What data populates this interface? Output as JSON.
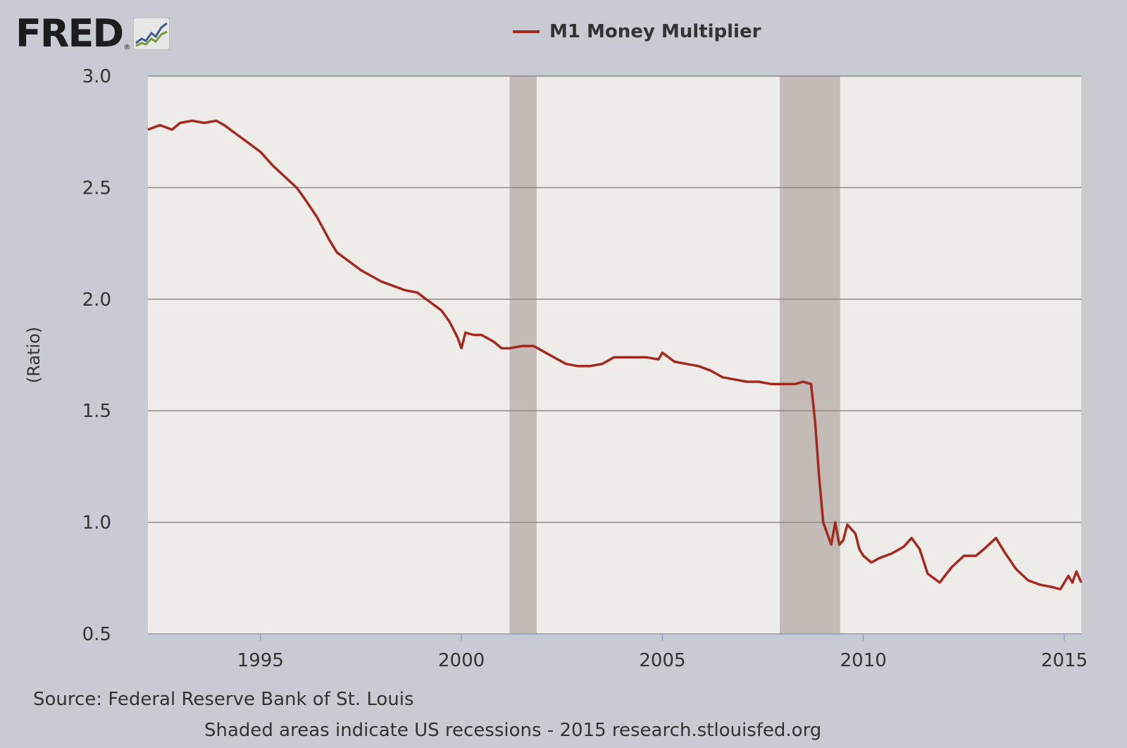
{
  "logo": {
    "text": "FRED",
    "reg": "®",
    "icon": "mini-line-chart-icon"
  },
  "colors": {
    "page_bg": "#c9cbd3",
    "plot_bg": "#eeece9",
    "recession": "#c2bbb6",
    "gridline": "#8e8a88",
    "series": "#a42a20",
    "text": "#333333"
  },
  "chart_data": {
    "type": "line",
    "title": "",
    "xlabel": "",
    "ylabel": "(Ratio)",
    "xlim": [
      1992.2,
      2015.42
    ],
    "ylim": [
      0.5,
      3.0
    ],
    "x_ticks": [
      1995,
      2000,
      2005,
      2010,
      2015
    ],
    "x_tick_labels": [
      "1995",
      "2000",
      "2005",
      "2010",
      "2015"
    ],
    "y_ticks": [
      0.5,
      1.0,
      1.5,
      2.0,
      2.5,
      3.0
    ],
    "y_tick_labels": [
      "0.5",
      "1.0",
      "1.5",
      "2.0",
      "2.5",
      "3.0"
    ],
    "grid": true,
    "legend_position": "top-center",
    "recessions": [
      {
        "start": 2001.2,
        "end": 2001.87
      },
      {
        "start": 2007.92,
        "end": 2009.42
      }
    ],
    "series": [
      {
        "name": "M1 Money Multiplier",
        "color": "#a42a20",
        "x": [
          1992.2,
          1992.5,
          1992.8,
          1993.0,
          1993.3,
          1993.6,
          1993.9,
          1994.1,
          1994.4,
          1994.7,
          1995.0,
          1995.3,
          1995.6,
          1995.9,
          1996.1,
          1996.4,
          1996.7,
          1996.9,
          1997.2,
          1997.5,
          1997.8,
          1998.0,
          1998.3,
          1998.6,
          1998.9,
          1999.2,
          1999.5,
          1999.7,
          1999.9,
          2000.0,
          2000.1,
          2000.3,
          2000.5,
          2000.8,
          2001.0,
          2001.2,
          2001.5,
          2001.8,
          2002.0,
          2002.3,
          2002.6,
          2002.9,
          2003.2,
          2003.5,
          2003.8,
          2004.0,
          2004.3,
          2004.6,
          2004.9,
          2005.0,
          2005.3,
          2005.6,
          2005.9,
          2006.2,
          2006.5,
          2006.8,
          2007.1,
          2007.4,
          2007.7,
          2007.9,
          2008.1,
          2008.3,
          2008.5,
          2008.7,
          2008.8,
          2008.9,
          2009.0,
          2009.1,
          2009.2,
          2009.3,
          2009.4,
          2009.5,
          2009.6,
          2009.8,
          2009.9,
          2010.0,
          2010.2,
          2010.4,
          2010.7,
          2011.0,
          2011.2,
          2011.4,
          2011.6,
          2011.9,
          2012.2,
          2012.5,
          2012.8,
          2013.0,
          2013.3,
          2013.5,
          2013.8,
          2014.1,
          2014.4,
          2014.7,
          2014.9,
          2015.0,
          2015.1,
          2015.2,
          2015.3,
          2015.42
        ],
        "y": [
          2.76,
          2.78,
          2.76,
          2.79,
          2.8,
          2.79,
          2.8,
          2.78,
          2.74,
          2.7,
          2.66,
          2.6,
          2.55,
          2.5,
          2.45,
          2.37,
          2.27,
          2.21,
          2.17,
          2.13,
          2.1,
          2.08,
          2.06,
          2.04,
          2.03,
          1.99,
          1.95,
          1.9,
          1.83,
          1.78,
          1.85,
          1.84,
          1.84,
          1.81,
          1.78,
          1.78,
          1.79,
          1.79,
          1.77,
          1.74,
          1.71,
          1.7,
          1.7,
          1.71,
          1.74,
          1.74,
          1.74,
          1.74,
          1.73,
          1.76,
          1.72,
          1.71,
          1.7,
          1.68,
          1.65,
          1.64,
          1.63,
          1.63,
          1.62,
          1.62,
          1.62,
          1.62,
          1.63,
          1.62,
          1.45,
          1.2,
          1.0,
          0.95,
          0.9,
          1.0,
          0.9,
          0.92,
          0.99,
          0.95,
          0.88,
          0.85,
          0.82,
          0.84,
          0.86,
          0.89,
          0.93,
          0.88,
          0.77,
          0.73,
          0.8,
          0.85,
          0.85,
          0.88,
          0.93,
          0.87,
          0.79,
          0.74,
          0.72,
          0.71,
          0.7,
          0.73,
          0.76,
          0.73,
          0.78,
          0.73
        ]
      }
    ]
  },
  "footer": {
    "source": "Source: Federal Reserve Bank of St. Louis",
    "note": "Shaded areas indicate US recessions - 2015 research.stlouisfed.org"
  }
}
